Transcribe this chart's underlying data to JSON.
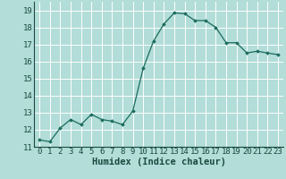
{
  "x": [
    0,
    1,
    2,
    3,
    4,
    5,
    6,
    7,
    8,
    9,
    10,
    11,
    12,
    13,
    14,
    15,
    16,
    17,
    18,
    19,
    20,
    21,
    22,
    23
  ],
  "y": [
    11.4,
    11.3,
    12.1,
    12.6,
    12.3,
    12.9,
    12.6,
    12.5,
    12.3,
    13.1,
    15.6,
    17.2,
    18.2,
    18.85,
    18.8,
    18.4,
    18.4,
    18.0,
    17.1,
    17.1,
    16.5,
    16.6,
    16.5,
    16.4
  ],
  "line_color": "#1a6b5e",
  "marker": "D",
  "marker_size": 1.8,
  "line_width": 0.9,
  "bg_color": "#b2ddd8",
  "grid_color": "#ffffff",
  "xlabel": "Humidex (Indice chaleur)",
  "xlabel_fontsize": 7.5,
  "tick_fontsize": 6.5,
  "ylim": [
    11,
    19.5
  ],
  "yticks": [
    11,
    12,
    13,
    14,
    15,
    16,
    17,
    18,
    19
  ],
  "xticks": [
    0,
    1,
    2,
    3,
    4,
    5,
    6,
    7,
    8,
    9,
    10,
    11,
    12,
    13,
    14,
    15,
    16,
    17,
    18,
    19,
    20,
    21,
    22,
    23
  ],
  "xlim": [
    -0.5,
    23.5
  ]
}
